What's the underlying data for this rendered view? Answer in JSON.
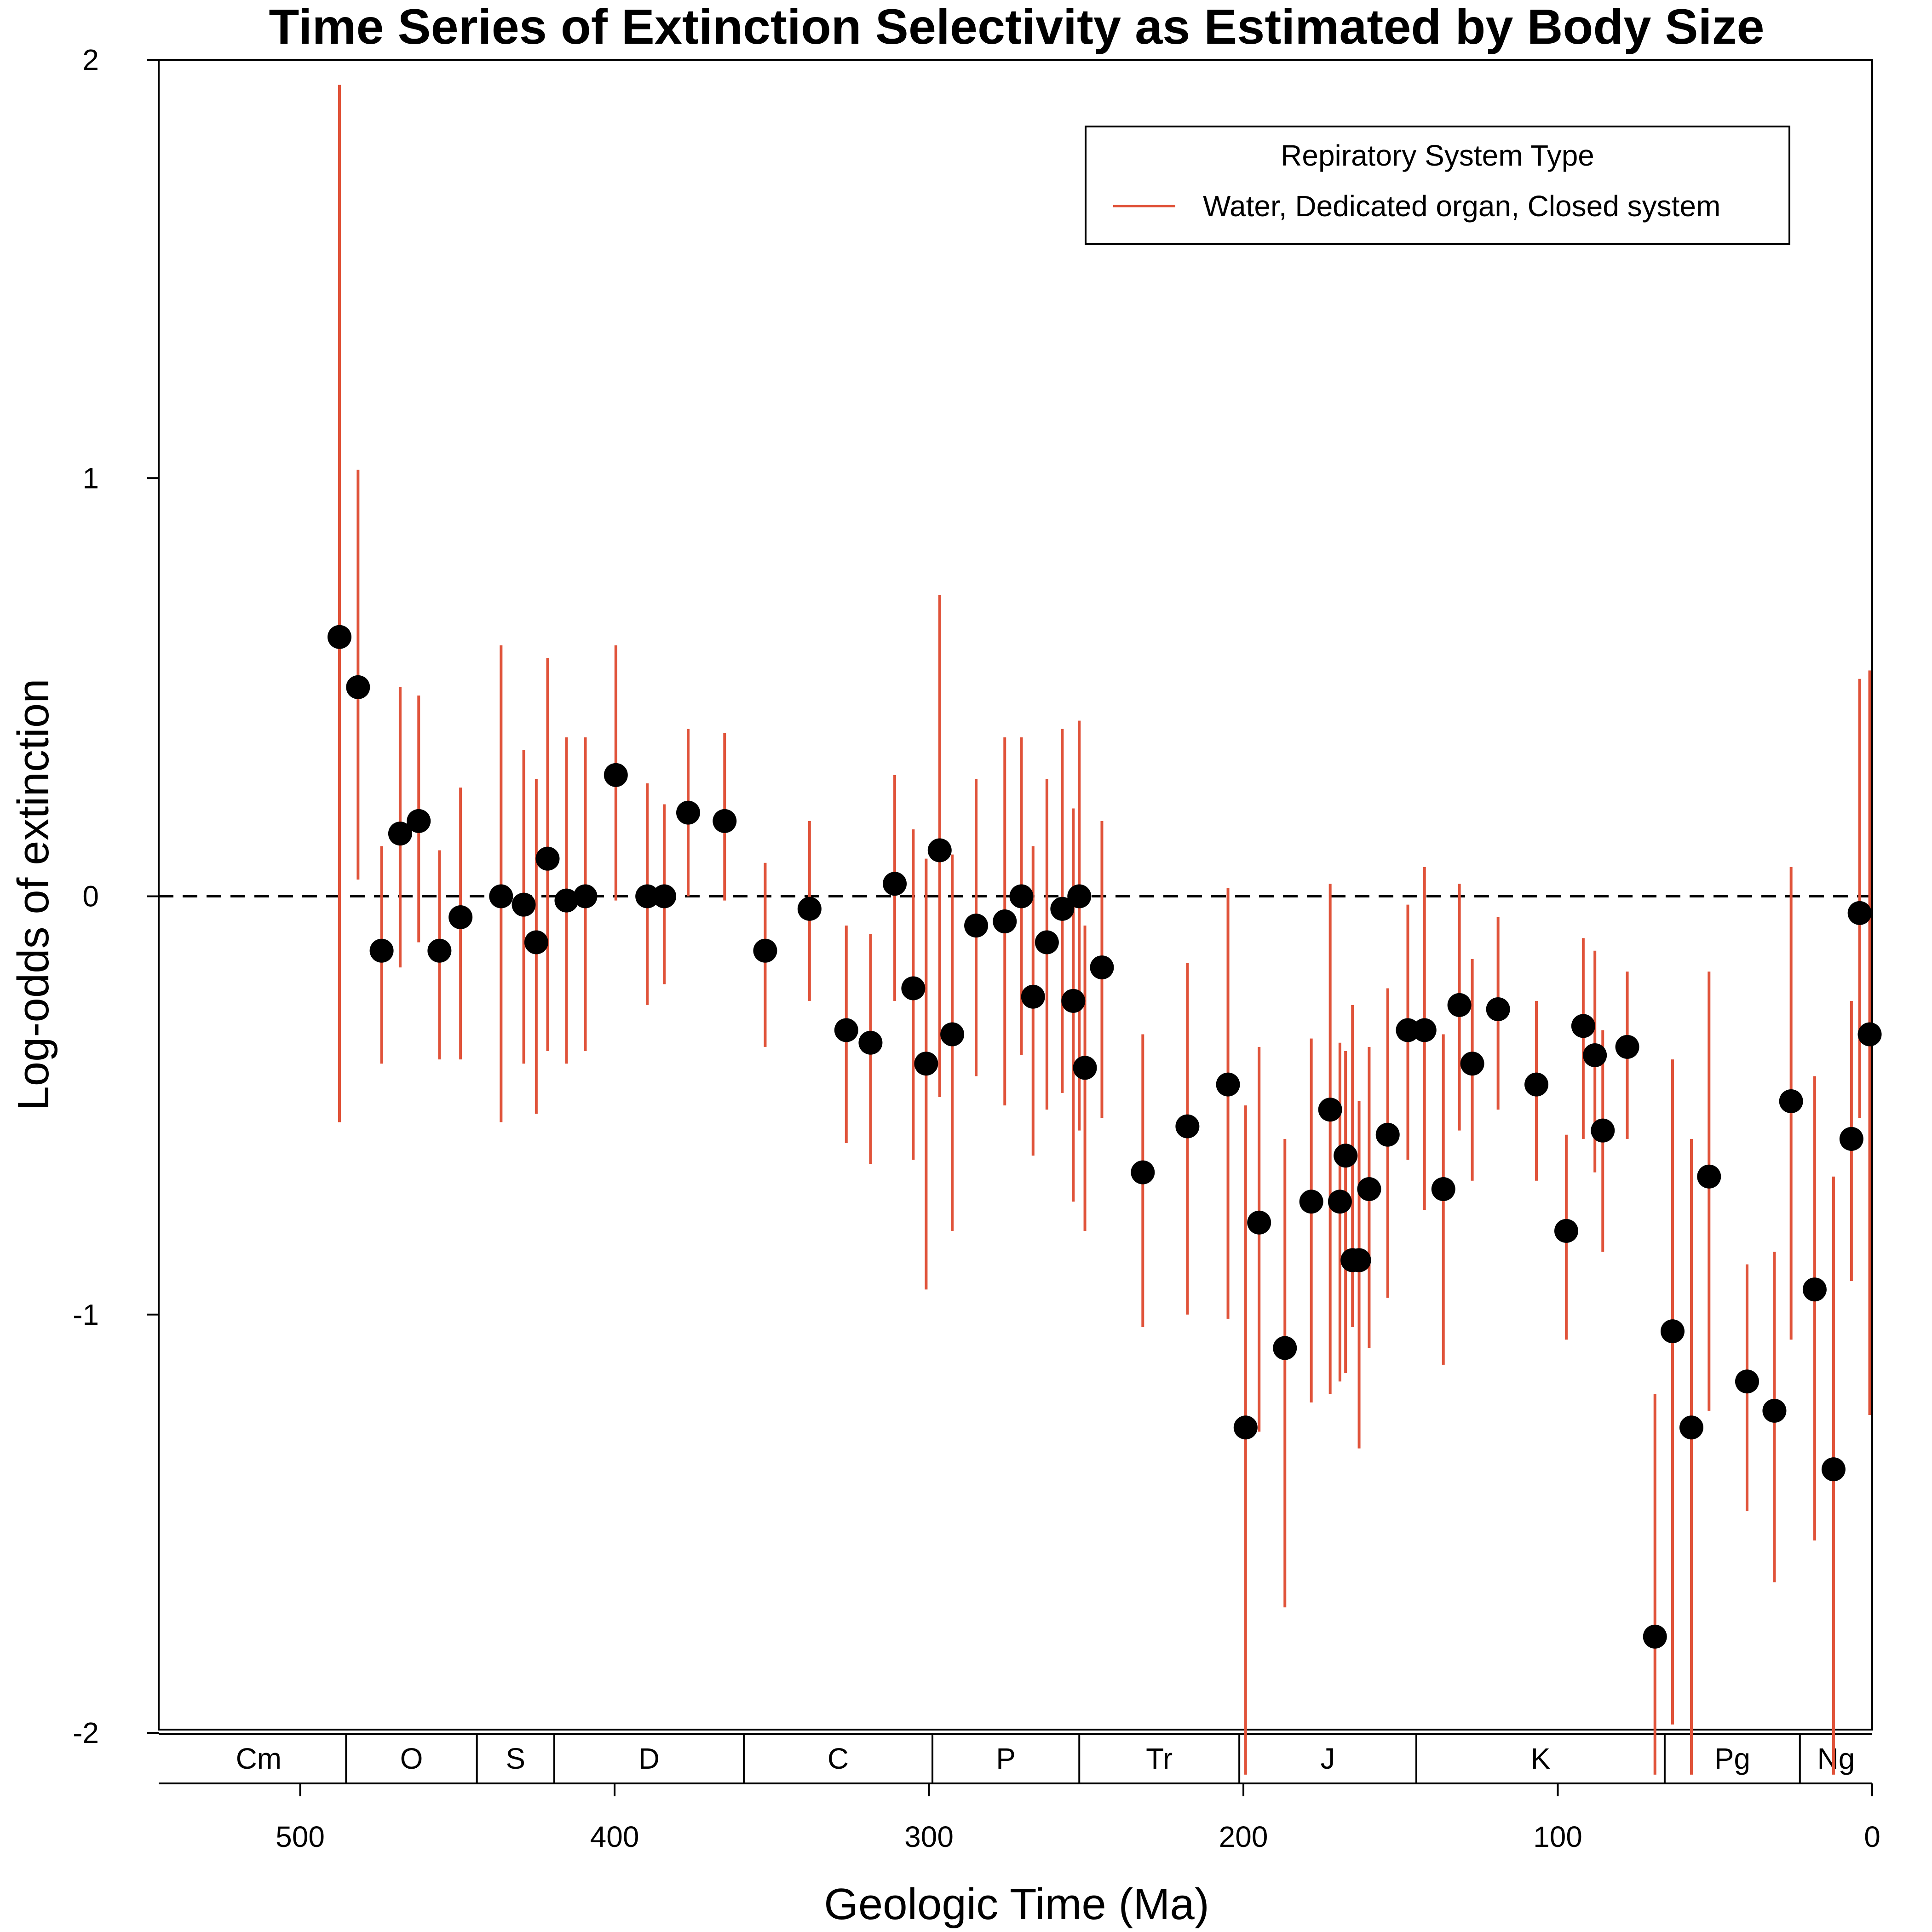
{
  "chart_data": {
    "type": "scatter",
    "title": "Time Series of Extinction Selectivity as Estimated by Body Size",
    "xlabel": "Geologic Time (Ma)",
    "ylabel": "Log-odds of extinction",
    "xlim": [
      545,
      0
    ],
    "ylim": [
      -2.1,
      2
    ],
    "x_ticks": [
      500,
      400,
      300,
      200,
      100,
      0
    ],
    "y_ticks": [
      2,
      1,
      0,
      -1,
      -2
    ],
    "x_tick_labels": [
      "500",
      "400",
      "300",
      "200",
      "100",
      "0"
    ],
    "y_tick_labels": [
      "2",
      "1",
      "0",
      "-1",
      "-2"
    ],
    "reference_line": {
      "y": 0,
      "style": "dashed"
    },
    "legend": {
      "title": "Repiratory System Type",
      "position": "top-right",
      "entries": [
        "Water, Dedicated organ, Closed system"
      ]
    },
    "colors": {
      "errorbar": "#e0533a",
      "point": "#000000"
    },
    "periods": [
      {
        "label": "Cm",
        "start": 541,
        "end": 485.4
      },
      {
        "label": "O",
        "start": 485.4,
        "end": 443.8
      },
      {
        "label": "S",
        "start": 443.8,
        "end": 419.2
      },
      {
        "label": "D",
        "start": 419.2,
        "end": 358.9
      },
      {
        "label": "C",
        "start": 358.9,
        "end": 298.9
      },
      {
        "label": "P",
        "start": 298.9,
        "end": 252.2
      },
      {
        "label": "Tr",
        "start": 252.2,
        "end": 201.3
      },
      {
        "label": "J",
        "start": 201.3,
        "end": 145
      },
      {
        "label": "K",
        "start": 145,
        "end": 66
      },
      {
        "label": "Pg",
        "start": 66,
        "end": 23
      },
      {
        "label": "Ng",
        "start": 23,
        "end": 0
      }
    ],
    "series": [
      {
        "name": "Water, Dedicated organ, Closed system",
        "points": [
          {
            "x": 487.5,
            "y": 0.62,
            "lo": -0.54,
            "hi": 1.94
          },
          {
            "x": 481.6,
            "y": 0.5,
            "lo": 0.04,
            "hi": 1.02
          },
          {
            "x": 474.1,
            "y": -0.13,
            "lo": -0.4,
            "hi": 0.12
          },
          {
            "x": 468.2,
            "y": 0.15,
            "lo": -0.17,
            "hi": 0.5
          },
          {
            "x": 462.3,
            "y": 0.18,
            "lo": -0.11,
            "hi": 0.48
          },
          {
            "x": 455.7,
            "y": -0.13,
            "lo": -0.39,
            "hi": 0.11
          },
          {
            "x": 449.0,
            "y": -0.05,
            "lo": -0.39,
            "hi": 0.26
          },
          {
            "x": 436.1,
            "y": 0.0,
            "lo": -0.54,
            "hi": 0.6
          },
          {
            "x": 428.9,
            "y": -0.02,
            "lo": -0.4,
            "hi": 0.35
          },
          {
            "x": 424.9,
            "y": -0.11,
            "lo": -0.52,
            "hi": 0.28
          },
          {
            "x": 421.3,
            "y": 0.09,
            "lo": -0.37,
            "hi": 0.57
          },
          {
            "x": 415.3,
            "y": -0.01,
            "lo": -0.4,
            "hi": 0.38
          },
          {
            "x": 409.3,
            "y": 0.0,
            "lo": -0.37,
            "hi": 0.38
          },
          {
            "x": 399.6,
            "y": 0.29,
            "lo": -0.01,
            "hi": 0.6
          },
          {
            "x": 389.6,
            "y": 0.0,
            "lo": -0.26,
            "hi": 0.27
          },
          {
            "x": 384.2,
            "y": 0.0,
            "lo": -0.21,
            "hi": 0.22
          },
          {
            "x": 376.6,
            "y": 0.2,
            "lo": 0.0,
            "hi": 0.4
          },
          {
            "x": 365.0,
            "y": 0.18,
            "lo": -0.01,
            "hi": 0.39
          },
          {
            "x": 352.1,
            "y": -0.13,
            "lo": -0.36,
            "hi": 0.08
          },
          {
            "x": 338.0,
            "y": -0.03,
            "lo": -0.25,
            "hi": 0.18
          },
          {
            "x": 326.3,
            "y": -0.32,
            "lo": -0.59,
            "hi": -0.07
          },
          {
            "x": 318.6,
            "y": -0.35,
            "lo": -0.64,
            "hi": -0.09
          },
          {
            "x": 310.9,
            "y": 0.03,
            "lo": -0.25,
            "hi": 0.29
          },
          {
            "x": 305.0,
            "y": -0.22,
            "lo": -0.63,
            "hi": 0.16
          },
          {
            "x": 300.9,
            "y": -0.4,
            "lo": -0.94,
            "hi": 0.09
          },
          {
            "x": 296.6,
            "y": 0.11,
            "lo": -0.48,
            "hi": 0.72
          },
          {
            "x": 292.6,
            "y": -0.33,
            "lo": -0.8,
            "hi": 0.1
          },
          {
            "x": 285.0,
            "y": -0.07,
            "lo": -0.43,
            "hi": 0.28
          },
          {
            "x": 275.9,
            "y": -0.06,
            "lo": -0.5,
            "hi": 0.38
          },
          {
            "x": 270.6,
            "y": 0.0,
            "lo": -0.38,
            "hi": 0.38
          },
          {
            "x": 266.9,
            "y": -0.24,
            "lo": -0.62,
            "hi": 0.12
          },
          {
            "x": 262.5,
            "y": -0.11,
            "lo": -0.51,
            "hi": 0.28
          },
          {
            "x": 257.6,
            "y": -0.03,
            "lo": -0.47,
            "hi": 0.4
          },
          {
            "x": 254.1,
            "y": -0.25,
            "lo": -0.73,
            "hi": 0.21
          },
          {
            "x": 252.2,
            "y": 0.0,
            "lo": -0.56,
            "hi": 0.42
          },
          {
            "x": 250.4,
            "y": -0.41,
            "lo": -0.8,
            "hi": -0.07
          },
          {
            "x": 245.0,
            "y": -0.17,
            "lo": -0.53,
            "hi": 0.18
          },
          {
            "x": 232.0,
            "y": -0.66,
            "lo": -1.03,
            "hi": -0.33
          },
          {
            "x": 217.8,
            "y": -0.55,
            "lo": -1.0,
            "hi": -0.16
          },
          {
            "x": 204.9,
            "y": -0.45,
            "lo": -1.01,
            "hi": 0.02
          },
          {
            "x": 199.3,
            "y": -1.27,
            "lo": -2.1,
            "hi": -0.5
          },
          {
            "x": 195.0,
            "y": -0.78,
            "lo": -1.28,
            "hi": -0.36
          },
          {
            "x": 186.8,
            "y": -1.08,
            "lo": -1.7,
            "hi": -0.58
          },
          {
            "x": 178.4,
            "y": -0.73,
            "lo": -1.21,
            "hi": -0.34
          },
          {
            "x": 172.4,
            "y": -0.51,
            "lo": -1.19,
            "hi": 0.03
          },
          {
            "x": 169.3,
            "y": -0.73,
            "lo": -1.16,
            "hi": -0.35
          },
          {
            "x": 167.5,
            "y": -0.62,
            "lo": -1.14,
            "hi": -0.37
          },
          {
            "x": 165.3,
            "y": -0.87,
            "lo": -1.03,
            "hi": -0.26
          },
          {
            "x": 163.2,
            "y": -0.87,
            "lo": -1.32,
            "hi": -0.49
          },
          {
            "x": 160.0,
            "y": -0.7,
            "lo": -1.08,
            "hi": -0.36
          },
          {
            "x": 154.1,
            "y": -0.57,
            "lo": -0.96,
            "hi": -0.22
          },
          {
            "x": 147.7,
            "y": -0.32,
            "lo": -0.63,
            "hi": -0.02
          },
          {
            "x": 142.4,
            "y": -0.32,
            "lo": -0.75,
            "hi": 0.07
          },
          {
            "x": 136.4,
            "y": -0.7,
            "lo": -1.12,
            "hi": -0.33
          },
          {
            "x": 131.3,
            "y": -0.26,
            "lo": -0.56,
            "hi": 0.03
          },
          {
            "x": 127.2,
            "y": -0.4,
            "lo": -0.68,
            "hi": -0.15
          },
          {
            "x": 119.0,
            "y": -0.27,
            "lo": -0.51,
            "hi": -0.05
          },
          {
            "x": 106.8,
            "y": -0.45,
            "lo": -0.68,
            "hi": -0.25
          },
          {
            "x": 97.3,
            "y": -0.8,
            "lo": -1.06,
            "hi": -0.57
          },
          {
            "x": 91.9,
            "y": -0.31,
            "lo": -0.58,
            "hi": -0.1
          },
          {
            "x": 88.2,
            "y": -0.38,
            "lo": -0.66,
            "hi": -0.13
          },
          {
            "x": 85.7,
            "y": -0.56,
            "lo": -0.85,
            "hi": -0.32
          },
          {
            "x": 77.9,
            "y": -0.36,
            "lo": -0.58,
            "hi": -0.18
          },
          {
            "x": 69.1,
            "y": -1.77,
            "lo": -2.1,
            "hi": -1.19
          },
          {
            "x": 63.5,
            "y": -1.04,
            "lo": -1.98,
            "hi": -0.39
          },
          {
            "x": 57.5,
            "y": -1.27,
            "lo": -2.1,
            "hi": -0.58
          },
          {
            "x": 51.9,
            "y": -0.67,
            "lo": -1.23,
            "hi": -0.18
          },
          {
            "x": 39.8,
            "y": -1.16,
            "lo": -1.47,
            "hi": -0.88
          },
          {
            "x": 31.1,
            "y": -1.23,
            "lo": -1.64,
            "hi": -0.85
          },
          {
            "x": 25.8,
            "y": -0.49,
            "lo": -1.06,
            "hi": 0.07
          },
          {
            "x": 18.3,
            "y": -0.94,
            "lo": -1.54,
            "hi": -0.43
          },
          {
            "x": 12.3,
            "y": -1.37,
            "lo": -2.1,
            "hi": -0.67
          },
          {
            "x": 6.6,
            "y": -0.58,
            "lo": -0.92,
            "hi": -0.25
          },
          {
            "x": 4.0,
            "y": -0.04,
            "lo": -0.53,
            "hi": 0.52
          },
          {
            "x": 0.8,
            "y": -0.33,
            "lo": -1.24,
            "hi": 0.54
          }
        ]
      }
    ]
  }
}
